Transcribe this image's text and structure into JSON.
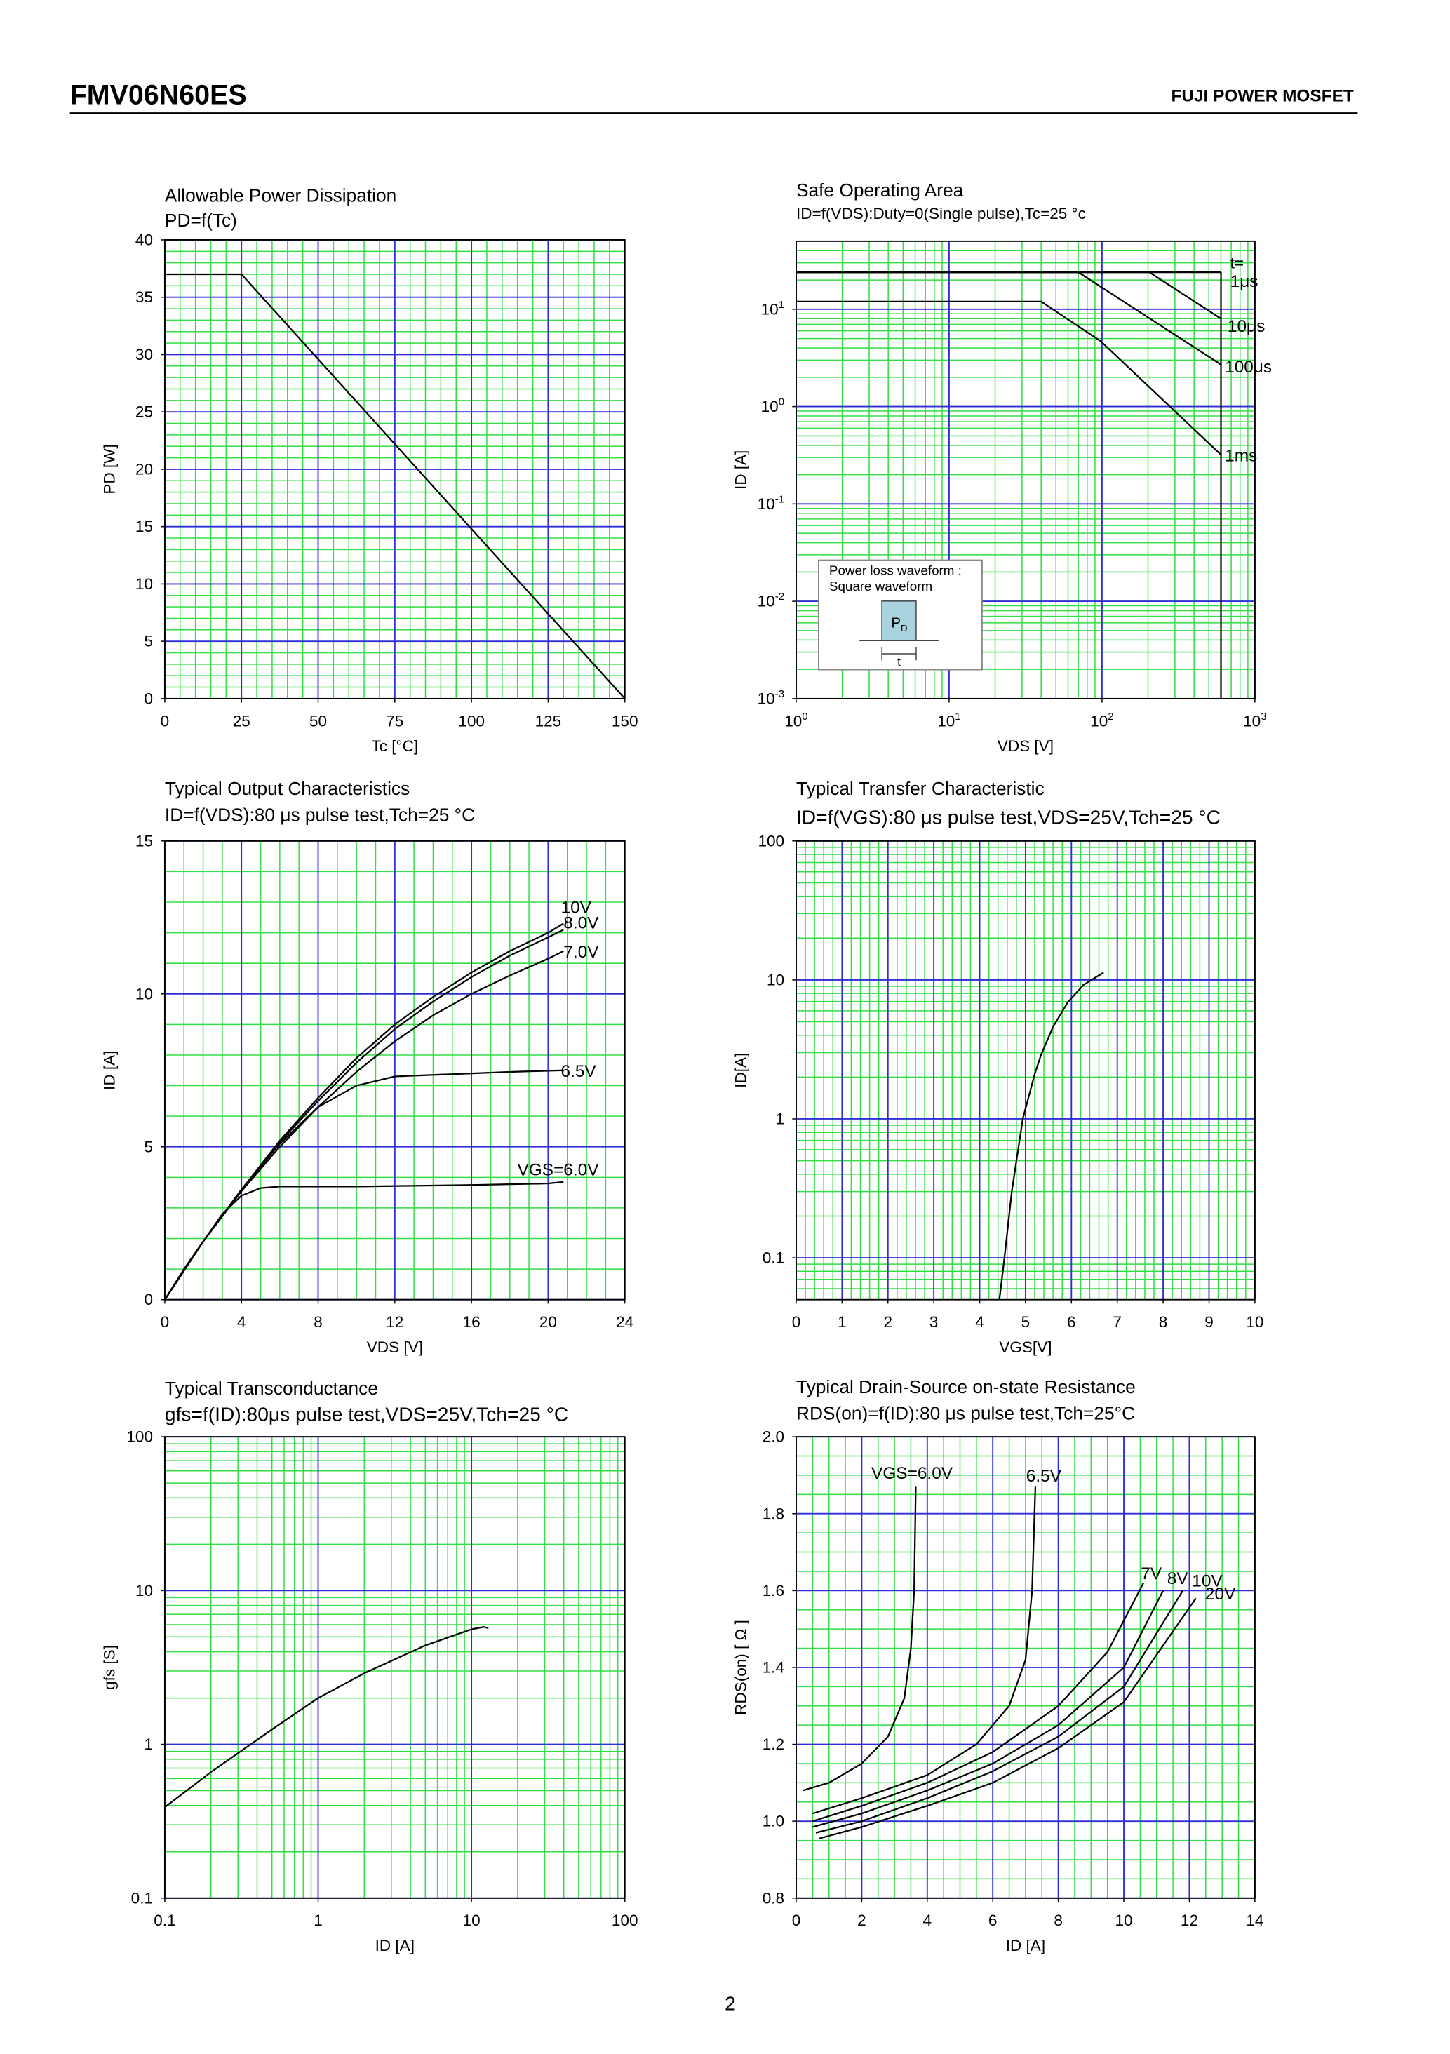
{
  "header": {
    "title": "FMV06N60ES",
    "brand": "FUJI POWER MOSFET"
  },
  "page_number": "2",
  "chart_data": [
    {
      "type": "line",
      "title": "Allowable Power Dissipation",
      "subtitle": "PD=f(Tc)",
      "x_label": "Tc [°C]",
      "y_label": "PD [W]",
      "xlim": [
        0,
        150
      ],
      "xticks": [
        0,
        25,
        50,
        75,
        100,
        125,
        150
      ],
      "ylim": [
        0,
        40
      ],
      "yticks": [
        0,
        5,
        10,
        15,
        20,
        25,
        30,
        35,
        40
      ],
      "grid": {
        "major_color": "#2e2ed6",
        "minor_color": "#33dd44",
        "x_minor": 5,
        "y_minor": 5
      },
      "line_color": "#000000",
      "series": [
        {
          "x": [
            0,
            25,
            150
          ],
          "values": [
            37,
            37,
            0
          ]
        }
      ]
    },
    {
      "type": "line",
      "title": "Safe Operating Area",
      "subtitle": "ID=f(VDS):Duty=0(Single pulse),Tc=25 °c",
      "x_label": "VDS [V]",
      "y_label": "ID [A]",
      "xlog": true,
      "ylog": true,
      "xlim": [
        1,
        1000
      ],
      "xticks": [
        {
          "value": 1,
          "label": "10",
          "sup": "0"
        },
        {
          "value": 10,
          "label": "10",
          "sup": "1"
        },
        {
          "value": 100,
          "label": "10",
          "sup": "2"
        },
        {
          "value": 1000,
          "label": "10",
          "sup": "3"
        }
      ],
      "ylim": [
        0.001,
        50
      ],
      "yticks": [
        {
          "value": 0.001,
          "label": "10",
          "sup": "-3"
        },
        {
          "value": 0.01,
          "label": "10",
          "sup": "-2"
        },
        {
          "value": 0.1,
          "label": "10",
          "sup": "-1"
        },
        {
          "value": 1,
          "label": "10",
          "sup": "0"
        },
        {
          "value": 10,
          "label": "10",
          "sup": "1"
        }
      ],
      "grid": {
        "major_color": "#2e2ed6",
        "minor_color": "#33dd44"
      },
      "line_color": "#000000",
      "annotation": "t=",
      "inset": {
        "lines": [
          "Power loss waveform :",
          "Square waveform"
        ],
        "pd": "P",
        "pd_sub": "D",
        "t": "t"
      },
      "series": [
        {
          "name": "1μs",
          "x": [
            1,
            600
          ],
          "values": [
            24,
            24
          ]
        },
        {
          "name": "10μs",
          "x": [
            1,
            204,
            600
          ],
          "values": [
            24,
            24,
            8
          ]
        },
        {
          "name": "100μs",
          "x": [
            1,
            70,
            600
          ],
          "values": [
            24,
            24,
            2.7
          ]
        },
        {
          "name": "1ms",
          "x": [
            1,
            40,
            98,
            600
          ],
          "values": [
            12,
            12,
            4.7,
            0.32
          ]
        },
        {
          "x": [
            600,
            600
          ],
          "values": [
            24,
            0.001
          ]
        }
      ]
    },
    {
      "type": "line",
      "title": "Typical Output Characteristics",
      "subtitle": "ID=f(VDS):80 μs pulse test,Tch=25 °C",
      "x_label": "VDS [V]",
      "y_label": "ID [A]",
      "xlim": [
        0,
        24
      ],
      "xticks": [
        0,
        4,
        8,
        12,
        16,
        20,
        24
      ],
      "ylim": [
        0,
        15
      ],
      "yticks": [
        0,
        5,
        10,
        15
      ],
      "grid": {
        "major_color": "#2e2ed6",
        "minor_color": "#33dd44",
        "x_minor": 4,
        "y_minor": 5
      },
      "line_color": "#000000",
      "series": [
        {
          "name": "10V",
          "x": [
            0,
            2,
            4,
            6,
            8,
            10,
            12,
            14,
            16,
            18,
            20,
            20.8
          ],
          "values": [
            0,
            1.9,
            3.6,
            5.2,
            6.6,
            7.9,
            9.0,
            9.9,
            10.7,
            11.4,
            12.0,
            12.3
          ]
        },
        {
          "name": "8.0V",
          "x": [
            0,
            2,
            4,
            6,
            8,
            10,
            12,
            14,
            16,
            18,
            20,
            20.8
          ],
          "values": [
            0,
            1.9,
            3.6,
            5.15,
            6.5,
            7.75,
            8.85,
            9.75,
            10.55,
            11.25,
            11.85,
            12.1
          ]
        },
        {
          "name": "7.0V",
          "x": [
            0,
            2,
            4,
            6,
            8,
            10,
            12,
            14,
            16,
            18,
            20,
            20.8
          ],
          "values": [
            0,
            1.9,
            3.55,
            5.0,
            6.3,
            7.45,
            8.45,
            9.3,
            10.0,
            10.6,
            11.15,
            11.4
          ]
        },
        {
          "name": "6.5V",
          "x": [
            0,
            2,
            4,
            6,
            8,
            10,
            12,
            14,
            16,
            18,
            20.8
          ],
          "values": [
            0,
            1.9,
            3.6,
            5.1,
            6.3,
            7.0,
            7.3,
            7.35,
            7.4,
            7.45,
            7.5
          ]
        },
        {
          "name": "VGS=6.0V",
          "x": [
            0,
            1,
            2,
            3,
            4,
            5,
            6,
            10,
            16,
            20,
            20.8
          ],
          "values": [
            0,
            1,
            1.9,
            2.8,
            3.4,
            3.65,
            3.7,
            3.7,
            3.75,
            3.8,
            3.85
          ]
        }
      ]
    },
    {
      "type": "line",
      "title": "Typical Transfer Characteristic",
      "subtitle": "ID=f(VGS):80 μs pulse test,VDS=25V,Tch=25 °C",
      "x_label": "VGS[V]",
      "y_label": "ID[A]",
      "ylog": true,
      "xlim": [
        0,
        10
      ],
      "xticks": [
        0,
        1,
        2,
        3,
        4,
        5,
        6,
        7,
        8,
        9,
        10
      ],
      "ylim": [
        0.05,
        100
      ],
      "yticks": [
        0.1,
        1,
        10,
        100
      ],
      "grid": {
        "major_color": "#2e2ed6",
        "minor_color": "#33dd44",
        "x_minor": 5
      },
      "line_color": "#000000",
      "series": [
        {
          "x": [
            4.43,
            4.54,
            4.7,
            4.94,
            5.2,
            5.34,
            5.6,
            5.92,
            6.26,
            6.7
          ],
          "values": [
            0.05,
            0.1,
            0.3,
            1,
            2.1,
            2.9,
            4.6,
            6.9,
            9.2,
            11.3
          ]
        }
      ]
    },
    {
      "type": "line",
      "title": "Typical Transconductance",
      "subtitle": "gfs=f(ID):80μs pulse test,VDS=25V,Tch=25 °C",
      "x_label": "ID [A]",
      "y_label": "gfs [S]",
      "xlog": true,
      "ylog": true,
      "xlim": [
        0.1,
        100
      ],
      "xticks": [
        0.1,
        1,
        10,
        100
      ],
      "ylim": [
        0.1,
        100
      ],
      "yticks": [
        0.1,
        1,
        10,
        100
      ],
      "grid": {
        "major_color": "#2e2ed6",
        "minor_color": "#33dd44"
      },
      "line_color": "#000000",
      "series": [
        {
          "x": [
            0.1,
            0.2,
            0.5,
            1,
            2,
            5,
            10,
            12,
            12.9
          ],
          "values": [
            0.39,
            0.66,
            1.25,
            2.0,
            2.9,
            4.4,
            5.6,
            5.8,
            5.7
          ]
        }
      ]
    },
    {
      "type": "line",
      "title": "Typical Drain-Source on-state Resistance",
      "subtitle": "RDS(on)=f(ID):80 μs pulse test,Tch=25°C",
      "x_label": "ID [A]",
      "y_label": "RDS(on) [ Ω ]",
      "xlim": [
        0,
        14
      ],
      "xticks": [
        0,
        2,
        4,
        6,
        8,
        10,
        12,
        14
      ],
      "ylim": [
        0.8,
        2.0
      ],
      "yticks": [
        0.8,
        {
          "value": 1,
          "label": "1.0"
        },
        1.2,
        1.4,
        1.6,
        1.8,
        {
          "value": 2,
          "label": "2.0"
        }
      ],
      "grid": {
        "major_color": "#2e2ed6",
        "minor_color": "#33dd44",
        "x_minor": 4,
        "y_minor": 4
      },
      "line_color": "#000000",
      "series": [
        {
          "name": "VGS=6.0V",
          "x": [
            0.2,
            1,
            2,
            2.8,
            3.3,
            3.5,
            3.6,
            3.65
          ],
          "values": [
            1.08,
            1.1,
            1.15,
            1.22,
            1.32,
            1.45,
            1.6,
            1.87
          ]
        },
        {
          "name": "6.5V",
          "x": [
            0.5,
            2,
            4,
            5.5,
            6.5,
            7,
            7.2,
            7.3
          ],
          "values": [
            1.02,
            1.06,
            1.12,
            1.2,
            1.3,
            1.42,
            1.6,
            1.87
          ]
        },
        {
          "name": "7V",
          "x": [
            0.5,
            2,
            4,
            6,
            8,
            9.5,
            10.6
          ],
          "values": [
            1.0,
            1.04,
            1.1,
            1.18,
            1.3,
            1.44,
            1.62
          ]
        },
        {
          "name": "8V",
          "x": [
            0.5,
            2,
            4,
            6,
            8,
            10,
            11.2
          ],
          "values": [
            0.985,
            1.02,
            1.08,
            1.15,
            1.25,
            1.4,
            1.6
          ]
        },
        {
          "name": "10V",
          "x": [
            0.6,
            2,
            4,
            6,
            8,
            10,
            11.8
          ],
          "values": [
            0.97,
            1.0,
            1.06,
            1.13,
            1.22,
            1.35,
            1.6
          ]
        },
        {
          "name": "20V",
          "x": [
            0.7,
            2,
            4,
            6,
            8,
            10,
            12.2
          ],
          "values": [
            0.955,
            0.985,
            1.04,
            1.1,
            1.19,
            1.31,
            1.58
          ]
        }
      ]
    }
  ]
}
